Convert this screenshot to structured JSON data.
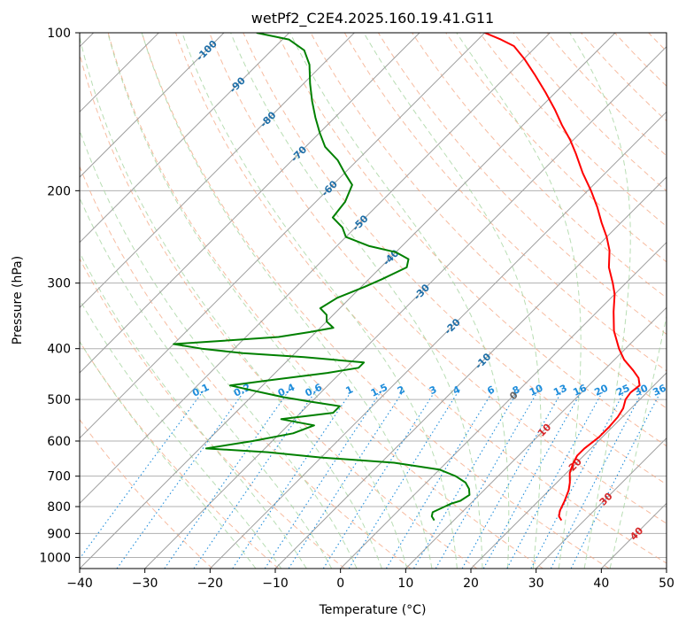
{
  "chart_data": {
    "type": "line",
    "title": "wetPf2_C2E4.2025.160.19.41.G11",
    "xlabel": "Temperature (°C)",
    "ylabel": "Pressure (hPa)",
    "xlim": [
      -40,
      50
    ],
    "ylim": [
      1050,
      100
    ],
    "y_scale": "log",
    "grid": true,
    "x_ticks": [
      -40,
      -30,
      -20,
      -10,
      0,
      10,
      20,
      30,
      40,
      50
    ],
    "y_ticks": [
      100,
      200,
      300,
      400,
      500,
      600,
      700,
      800,
      900,
      1000
    ],
    "isotherm_labels": [
      -100,
      -90,
      -80,
      -70,
      -60,
      -50,
      -40,
      -30,
      -20,
      -10,
      0,
      10,
      20,
      30,
      40
    ],
    "mixing_ratio_labels": [
      "0.1",
      "0.2",
      "0.4",
      "0.6",
      "1",
      "1.5",
      "2",
      "3",
      "4",
      "6",
      "8",
      "10",
      "13",
      "16",
      "20",
      "25",
      "30",
      "36"
    ],
    "colors": {
      "temperature": "#ff0000",
      "dewpoint": "#008000",
      "isotherm": "#9e9e9e",
      "dry_adiabat": "#f4a582",
      "moist_adiabat": "#a6d5a0",
      "mixing_ratio": "#1f8ddb",
      "isotherm_label_cold": "#1f6fa8",
      "isotherm_label_warm": "#d62728"
    },
    "series": [
      {
        "name": "Temperature",
        "p": [
          850,
          835,
          815,
          780,
          745,
          720,
          690,
          660,
          640,
          620,
          590,
          565,
          540,
          520,
          500,
          485,
          470,
          455,
          440,
          420,
          400,
          370,
          340,
          315,
          300,
          280,
          260,
          245,
          230,
          215,
          200,
          185,
          170,
          160,
          150,
          140,
          130,
          120,
          112,
          106,
          103,
          100
        ],
        "t": [
          26.5,
          25.5,
          24.8,
          24.0,
          23.0,
          22.0,
          20.5,
          19.5,
          19.0,
          19.0,
          19.5,
          19.5,
          19.3,
          18.8,
          17.8,
          17.5,
          17.8,
          16.5,
          14.5,
          11.5,
          9.0,
          5.5,
          2.5,
          0.0,
          -2.0,
          -5.0,
          -7.5,
          -10.0,
          -13.0,
          -16.0,
          -19.5,
          -23.5,
          -27.5,
          -30.5,
          -34.0,
          -37.5,
          -41.5,
          -46.0,
          -50.0,
          -53.5,
          -56.5,
          -60.0
        ]
      },
      {
        "name": "Dewpoint",
        "p": [
          850,
          835,
          820,
          800,
          790,
          780,
          760,
          740,
          720,
          700,
          680,
          660,
          645,
          630,
          620,
          600,
          580,
          560,
          545,
          530,
          515,
          505,
          495,
          480,
          470,
          460,
          445,
          435,
          425,
          415,
          408,
          400,
          392,
          388,
          380,
          372,
          365,
          355,
          345,
          335,
          320,
          305,
          295,
          280,
          270,
          262,
          255,
          245,
          235,
          225,
          210,
          195,
          185,
          175,
          165,
          155,
          145,
          135,
          125,
          115,
          108,
          103,
          100
        ],
        "td": [
          7.0,
          6.0,
          5.5,
          6.5,
          7.0,
          8.0,
          8.5,
          7.5,
          6.0,
          3.5,
          0.0,
          -8.0,
          -20.0,
          -29.0,
          -39.0,
          -33.0,
          -28.0,
          -26.0,
          -32.0,
          -25.0,
          -25.0,
          -30.0,
          -35.0,
          -41.0,
          -45.0,
          -40.0,
          -32.0,
          -28.0,
          -28.0,
          -38.0,
          -48.0,
          -55.0,
          -60.0,
          -55.0,
          -45.0,
          -41.0,
          -38.0,
          -40.0,
          -41.0,
          -43.0,
          -42.0,
          -39.5,
          -38.0,
          -36.0,
          -37.0,
          -40.0,
          -45.0,
          -50.0,
          -52.0,
          -55.0,
          -55.5,
          -57.0,
          -60.0,
          -63.0,
          -67.0,
          -70.0,
          -73.0,
          -76.0,
          -79.0,
          -82.0,
          -85.0,
          -89.0,
          -95.0
        ]
      }
    ]
  }
}
